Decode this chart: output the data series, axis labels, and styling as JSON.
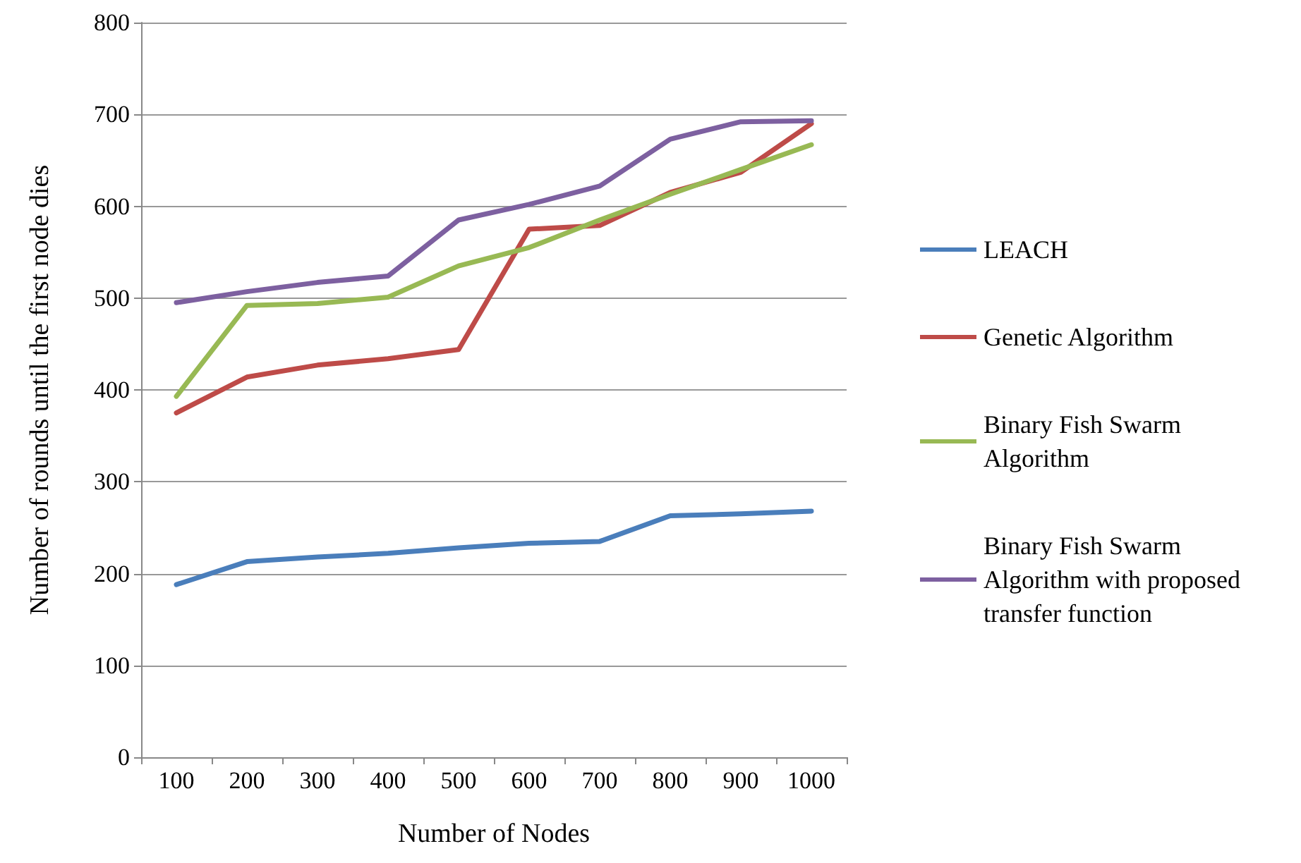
{
  "chart_data": {
    "type": "line",
    "xlabel": "Number of Nodes",
    "ylabel": "Number of rounds until the first node dies",
    "categories": [
      "100",
      "200",
      "300",
      "400",
      "500",
      "600",
      "700",
      "800",
      "900",
      "1000"
    ],
    "series": [
      {
        "name": "LEACH",
        "color": "#4a7ebb",
        "values": [
          188,
          213,
          218,
          222,
          228,
          233,
          235,
          263,
          265,
          268
        ]
      },
      {
        "name": "Genetic Algorithm",
        "color": "#be4b48",
        "values": [
          375,
          414,
          427,
          434,
          444,
          575,
          579,
          615,
          637,
          690
        ]
      },
      {
        "name": "Binary Fish Swarm Algorithm",
        "color": "#98b954",
        "values": [
          393,
          492,
          494,
          501,
          535,
          555,
          585,
          613,
          640,
          667
        ]
      },
      {
        "name": "Binary Fish Swarm Algorithm with proposed transfer function",
        "color": "#7d60a0",
        "values": [
          495,
          507,
          517,
          524,
          585,
          602,
          622,
          673,
          692,
          693
        ]
      }
    ],
    "ylim": [
      0,
      800
    ],
    "yticks": [
      0,
      100,
      200,
      300,
      400,
      500,
      600,
      700,
      800
    ],
    "grid": "y",
    "legend": "right",
    "marker": "none",
    "line_style": "solid"
  }
}
